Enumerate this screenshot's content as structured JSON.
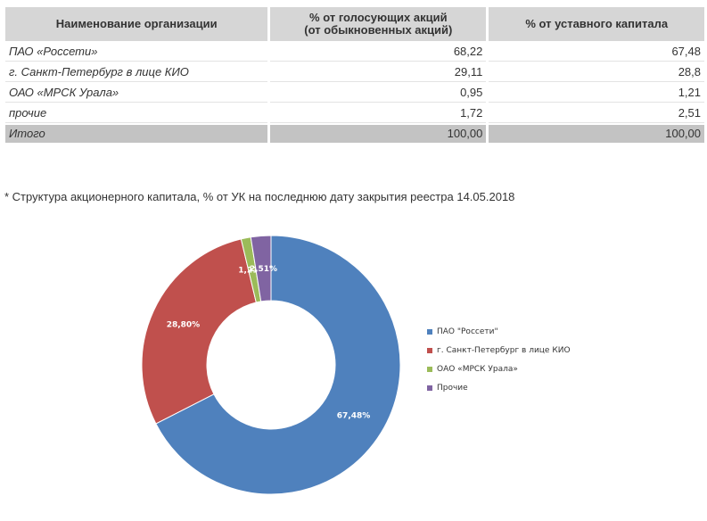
{
  "table": {
    "headers": [
      "Наименование организации",
      "% от голосующих акций\n(от обыкновенных акций)",
      "% от уставного капитала"
    ],
    "rows": [
      {
        "name": "ПАО «Россети»",
        "voting": "68,22",
        "capital": "67,48"
      },
      {
        "name": "г. Санкт-Петербург в лице КИО",
        "voting": "29,11",
        "capital": "28,8"
      },
      {
        "name": "ОАО «МРСК Урала»",
        "voting": "0,95",
        "capital": "1,21"
      },
      {
        "name": "прочие",
        "voting": "1,72",
        "capital": "2,51"
      }
    ],
    "total": {
      "name": "Итого",
      "voting": "100,00",
      "capital": "100,00"
    }
  },
  "note": "* Структура акционерного капитала, % от УК на последнюю дату закрытия реестра 14.05.2018",
  "chart_data": {
    "type": "pie",
    "variant": "donut",
    "series": [
      {
        "name": "ПАО \"Россети\"",
        "value": 67.48,
        "label": "67,48%",
        "color": "#4f81bd"
      },
      {
        "name": "г. Санкт-Петербург в лице КИО",
        "value": 28.8,
        "label": "28,80%",
        "color": "#c0504d"
      },
      {
        "name": "ОАО «МРСК Урала»",
        "value": 1.21,
        "label": "1,21%",
        "color": "#9bbb59"
      },
      {
        "name": "Прочие",
        "value": 2.51,
        "label": "2,51%",
        "color": "#8064a2"
      }
    ],
    "legend_position": "right"
  }
}
